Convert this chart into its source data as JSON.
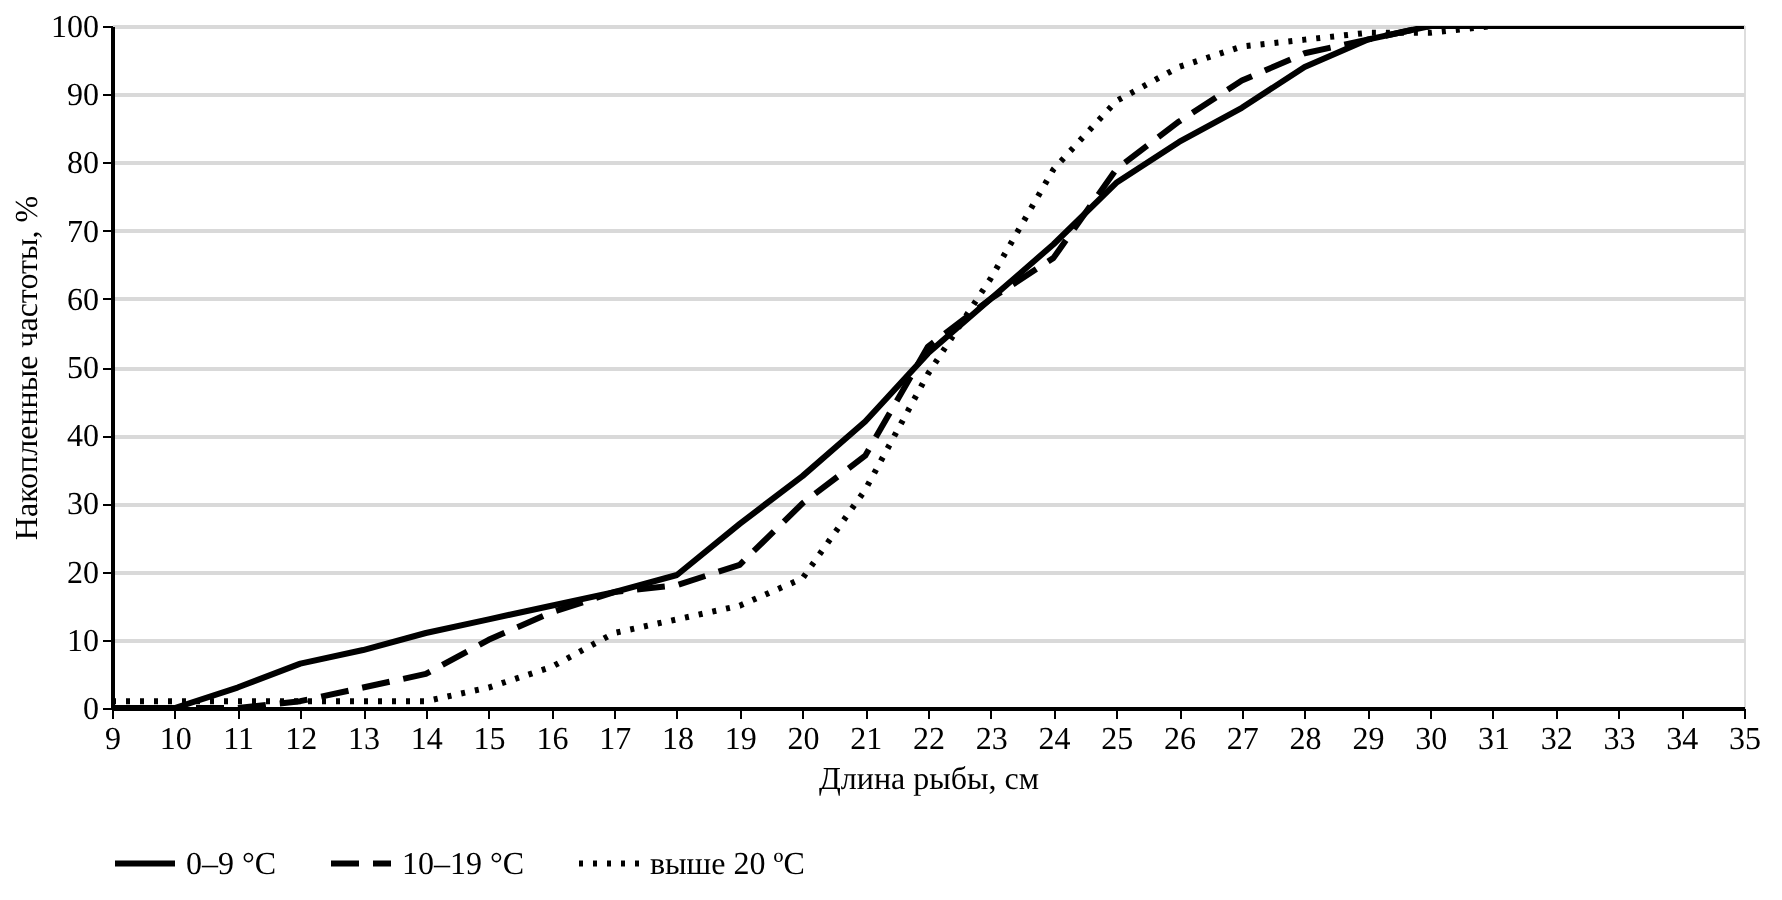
{
  "chart_data": {
    "type": "line",
    "xlabel": "Длина рыбы, см",
    "ylabel": "Накопленные частоты, %",
    "x": [
      9,
      10,
      11,
      12,
      13,
      14,
      15,
      16,
      17,
      18,
      19,
      20,
      21,
      22,
      23,
      24,
      25,
      26,
      27,
      28,
      29,
      30,
      31,
      32,
      33,
      34,
      35
    ],
    "series": [
      {
        "name": "0–9 °C",
        "color": "#000000",
        "line_style": "solid",
        "values": [
          0,
          0,
          3,
          6.5,
          8.5,
          11,
          13,
          15,
          17,
          19.5,
          27,
          34,
          42,
          52,
          60,
          68,
          77,
          83,
          88,
          94,
          98,
          100,
          100,
          100,
          100,
          100,
          100
        ]
      },
      {
        "name": "10–19 °C",
        "color": "#000000",
        "line_style": "dashed",
        "values": [
          0,
          0,
          0,
          1,
          3,
          5,
          10,
          14,
          17,
          18,
          21,
          30,
          37,
          53,
          60,
          66,
          79,
          86,
          92,
          96,
          98,
          100,
          100,
          100,
          100,
          100,
          100
        ]
      },
      {
        "name": "выше 20 ºC",
        "color": "#000000",
        "line_style": "dotted",
        "values": [
          1,
          1,
          1,
          1,
          1,
          1,
          3,
          6,
          11,
          13,
          15,
          19,
          32,
          49,
          63,
          79,
          89,
          94,
          97,
          98,
          99,
          99,
          100,
          100,
          100,
          100,
          100
        ]
      }
    ],
    "xlim": [
      9,
      35
    ],
    "xticks": [
      9,
      10,
      11,
      12,
      13,
      14,
      15,
      16,
      17,
      18,
      19,
      20,
      21,
      22,
      23,
      24,
      25,
      26,
      27,
      28,
      29,
      30,
      31,
      32,
      33,
      34,
      35
    ],
    "ylim": [
      0,
      100
    ],
    "yticks": [
      0,
      10,
      20,
      30,
      40,
      50,
      60,
      70,
      80,
      90,
      100
    ],
    "grid": "y",
    "legend": "bottom",
    "marker": "none"
  }
}
